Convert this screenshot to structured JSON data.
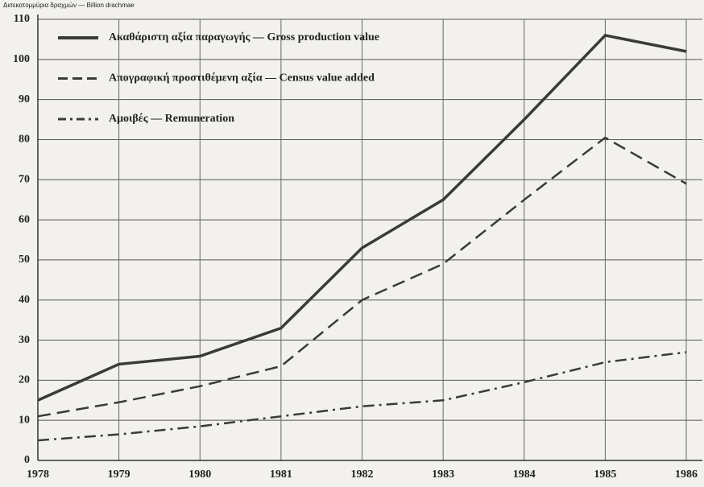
{
  "chart_data": {
    "type": "line",
    "y_label": "Δισεκατομμύρια δραχμών — Billion drachmae",
    "x": [
      1978,
      1979,
      1980,
      1981,
      1982,
      1983,
      1984,
      1985,
      1986
    ],
    "xlim": [
      1978,
      1986
    ],
    "xticks": [
      1978,
      1979,
      1980,
      1981,
      1982,
      1983,
      1984,
      1985,
      1986
    ],
    "ylim": [
      0,
      110
    ],
    "yticks": [
      0,
      10,
      20,
      30,
      40,
      50,
      60,
      70,
      80,
      90,
      100,
      110
    ],
    "grid": true,
    "legend": "upper left",
    "series": [
      {
        "name": "Ακαθάριστη αξία παραγωγής — Gross production value",
        "color": "#3a3a3a",
        "style": "solid",
        "values": [
          15,
          24,
          26,
          33,
          53,
          65,
          85,
          106,
          102
        ]
      },
      {
        "name": "Απογραφική προστιθέμενη αξία — Census value added",
        "color": "#3a3a3a",
        "style": "dashed",
        "values": [
          11,
          14.5,
          18.5,
          23.5,
          40,
          49,
          65,
          80.5,
          69
        ]
      },
      {
        "name": "Αμοιβές — Remuneration",
        "color": "#3a3a3a",
        "style": "dashdot",
        "values": [
          5,
          6.5,
          8.5,
          11,
          13.5,
          15,
          19.5,
          24.5,
          27
        ]
      }
    ]
  }
}
